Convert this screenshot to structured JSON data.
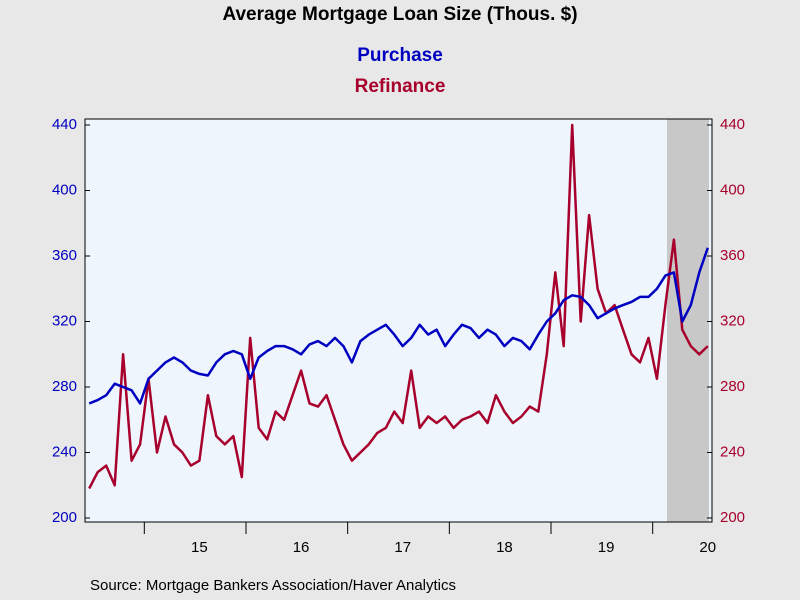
{
  "chart_data": {
    "type": "line",
    "title": "Average Mortgage Loan Size (Thous. $)",
    "source": "Source:  Mortgage Bankers Association/Haver Analytics",
    "categories": [
      null,
      null,
      null,
      null,
      null,
      null,
      null,
      null,
      null,
      null,
      null,
      null,
      null,
      "15",
      null,
      null,
      null,
      null,
      null,
      null,
      null,
      null,
      null,
      null,
      null,
      "16",
      null,
      null,
      null,
      null,
      null,
      null,
      null,
      null,
      null,
      null,
      null,
      "17",
      null,
      null,
      null,
      null,
      null,
      null,
      null,
      null,
      null,
      null,
      null,
      "18",
      null,
      null,
      null,
      null,
      null,
      null,
      null,
      null,
      null,
      null,
      null,
      "19",
      null,
      null,
      null,
      null,
      null,
      null,
      null,
      null,
      null,
      null,
      null,
      "20"
    ],
    "series": [
      {
        "name": "Purchase",
        "color": "#0000c0",
        "axis": "y",
        "values": [
          270,
          272,
          275,
          282,
          280,
          278,
          270,
          285,
          290,
          295,
          298,
          295,
          290,
          288,
          287,
          295,
          300,
          302,
          300,
          285,
          298,
          302,
          305,
          305,
          303,
          300,
          306,
          308,
          305,
          310,
          305,
          295,
          308,
          312,
          315,
          318,
          312,
          305,
          310,
          318,
          312,
          315,
          305,
          312,
          318,
          316,
          310,
          315,
          312,
          305,
          310,
          308,
          303,
          312,
          320,
          325,
          333,
          336,
          335,
          330,
          322,
          325,
          328,
          330,
          332,
          335,
          335,
          340,
          348,
          350,
          320,
          330,
          350,
          365
        ]
      },
      {
        "name": "Refinance",
        "color": "#a8002c",
        "axis": "y2",
        "values": [
          218,
          228,
          232,
          220,
          300,
          235,
          245,
          285,
          240,
          262,
          245,
          240,
          232,
          235,
          275,
          250,
          245,
          250,
          225,
          310,
          255,
          248,
          265,
          260,
          275,
          290,
          270,
          268,
          275,
          260,
          245,
          235,
          240,
          245,
          252,
          255,
          265,
          258,
          290,
          255,
          262,
          258,
          262,
          255,
          260,
          262,
          265,
          258,
          275,
          265,
          258,
          262,
          268,
          265,
          300,
          350,
          305,
          440,
          320,
          385,
          340,
          325,
          330,
          315,
          300,
          295,
          310,
          285,
          330,
          370,
          315,
          305,
          300,
          305
        ]
      }
    ],
    "ylim": [
      200,
      440
    ],
    "yticks": [
      200,
      240,
      280,
      320,
      360,
      400,
      440
    ],
    "y2lim": [
      200,
      440
    ],
    "y2ticks": [
      200,
      240,
      280,
      320,
      360,
      400,
      440
    ],
    "grid": false
  }
}
